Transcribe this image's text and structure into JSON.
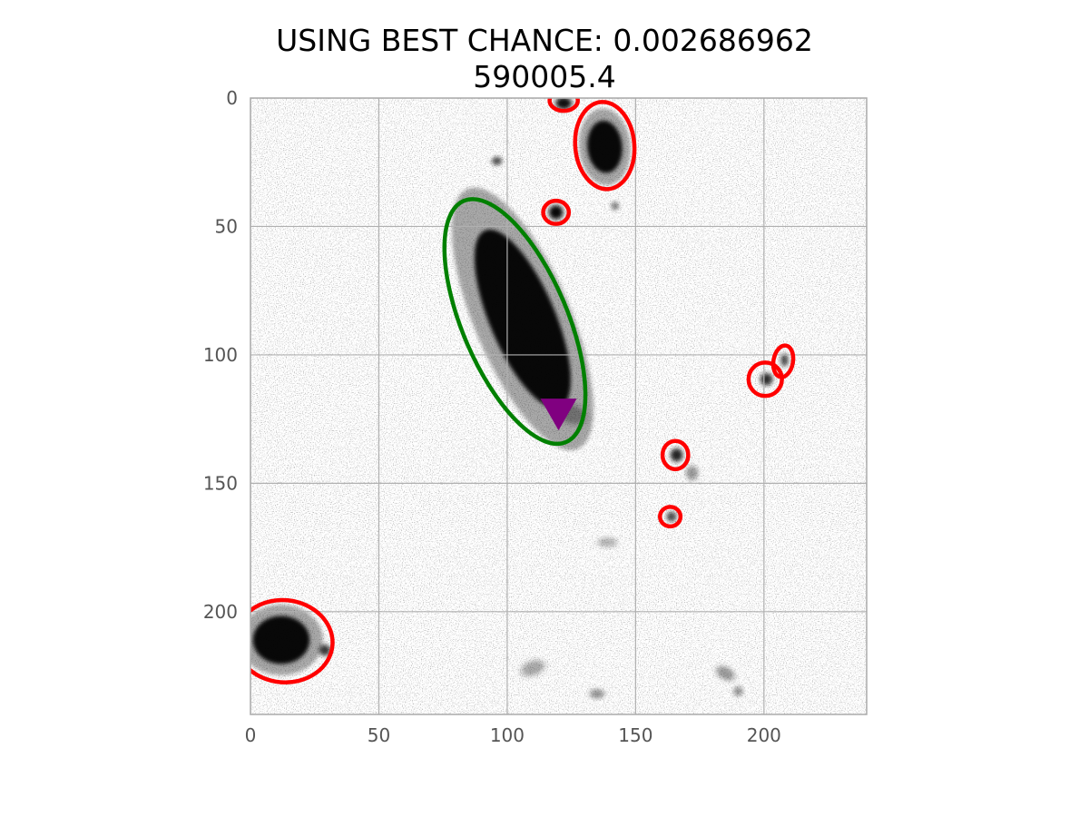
{
  "chart_data": {
    "type": "scatter",
    "title_line1": "USING BEST CHANCE: 0.002686962",
    "title_line2": "590005.4",
    "xlabel": "",
    "ylabel": "",
    "xlim": [
      0,
      240
    ],
    "ylim": [
      240,
      0
    ],
    "x_ticks": [
      0,
      50,
      100,
      150,
      200
    ],
    "y_ticks": [
      0,
      50,
      100,
      150,
      200
    ],
    "grid": true,
    "background": "inverted grayscale astronomical image",
    "colors": {
      "background": "#ffffff",
      "grid": "#b0b0b0",
      "axes": "#aaaaaa",
      "tick_label": "#555555",
      "host": "#008000",
      "other": "#ff0000",
      "marker": "#800080"
    },
    "host_ellipse": {
      "cx": 103,
      "cy": 87,
      "rx": 20.5,
      "ry": 51,
      "angle_deg": -23
    },
    "marker": {
      "shape": "triangle-down",
      "x": 120,
      "y": 122
    },
    "other_ellipses": [
      {
        "cx": 122,
        "cy": 1,
        "rx": 5.5,
        "ry": 4,
        "angle_deg": 0
      },
      {
        "cx": 138,
        "cy": 18.5,
        "rx": 11.5,
        "ry": 17,
        "angle_deg": -5
      },
      {
        "cx": 119,
        "cy": 44.5,
        "rx": 5,
        "ry": 4.5,
        "angle_deg": 0
      },
      {
        "cx": 207.5,
        "cy": 102.5,
        "rx": 3.8,
        "ry": 6.2,
        "angle_deg": 10
      },
      {
        "cx": 200.5,
        "cy": 109.5,
        "rx": 6.5,
        "ry": 6.5,
        "angle_deg": 45
      },
      {
        "cx": 165.5,
        "cy": 139,
        "rx": 5,
        "ry": 5.5,
        "angle_deg": 0
      },
      {
        "cx": 163.5,
        "cy": 163,
        "rx": 4,
        "ry": 3.8,
        "angle_deg": 0
      },
      {
        "cx": 13,
        "cy": 211.5,
        "rx": 19,
        "ry": 16,
        "angle_deg": 5
      }
    ],
    "sources": [
      {
        "x": 106,
        "y": 86,
        "rx": 15,
        "ry": 44,
        "angle_deg": -23,
        "alpha": 0.95
      },
      {
        "x": 138,
        "y": 19,
        "rx": 8,
        "ry": 12,
        "angle_deg": -5,
        "alpha": 0.95
      },
      {
        "x": 12,
        "y": 211,
        "rx": 13,
        "ry": 11,
        "angle_deg": 0,
        "alpha": 0.95
      },
      {
        "x": 122,
        "y": 2,
        "rx": 3.2,
        "ry": 2.4,
        "angle_deg": 0,
        "alpha": 0.9
      },
      {
        "x": 119,
        "y": 44.5,
        "rx": 2.8,
        "ry": 2.8,
        "angle_deg": 0,
        "alpha": 0.95
      },
      {
        "x": 166,
        "y": 139,
        "rx": 2.4,
        "ry": 2.6,
        "angle_deg": 0,
        "alpha": 0.8
      },
      {
        "x": 164,
        "y": 163,
        "rx": 2,
        "ry": 2,
        "angle_deg": 0,
        "alpha": 0.6
      },
      {
        "x": 201,
        "y": 109.5,
        "rx": 2.4,
        "ry": 2.4,
        "angle_deg": 0,
        "alpha": 0.75
      },
      {
        "x": 208,
        "y": 102,
        "rx": 1.5,
        "ry": 2.5,
        "angle_deg": 0,
        "alpha": 0.6
      },
      {
        "x": 96,
        "y": 24.5,
        "rx": 2,
        "ry": 1.6,
        "angle_deg": 0,
        "alpha": 0.6
      },
      {
        "x": 29,
        "y": 215,
        "rx": 2.2,
        "ry": 2.2,
        "angle_deg": 0,
        "alpha": 0.7
      },
      {
        "x": 142,
        "y": 42,
        "rx": 1.6,
        "ry": 1.6,
        "angle_deg": 0,
        "alpha": 0.4
      },
      {
        "x": 125,
        "y": 123,
        "rx": 6,
        "ry": 4,
        "angle_deg": 20,
        "alpha": 0.25
      },
      {
        "x": 172,
        "y": 146,
        "rx": 2.5,
        "ry": 3,
        "angle_deg": 0,
        "alpha": 0.3
      },
      {
        "x": 185,
        "y": 224,
        "rx": 4,
        "ry": 2.5,
        "angle_deg": 30,
        "alpha": 0.3
      },
      {
        "x": 110,
        "y": 222,
        "rx": 5,
        "ry": 3,
        "angle_deg": -20,
        "alpha": 0.25
      },
      {
        "x": 135,
        "y": 232,
        "rx": 3,
        "ry": 2,
        "angle_deg": 0,
        "alpha": 0.3
      },
      {
        "x": 139,
        "y": 173,
        "rx": 4,
        "ry": 2,
        "angle_deg": 0,
        "alpha": 0.2
      },
      {
        "x": 190,
        "y": 231,
        "rx": 2,
        "ry": 2,
        "angle_deg": 0,
        "alpha": 0.3
      }
    ]
  }
}
